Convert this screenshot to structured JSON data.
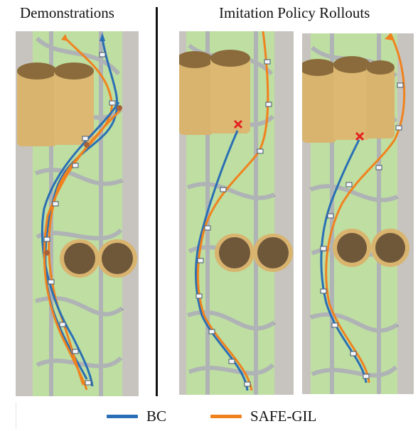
{
  "titles": {
    "left": "Demonstrations",
    "right": "Imitation Policy Rollouts"
  },
  "legend": {
    "bc": {
      "label": "BC",
      "color": "#2a6fb5"
    },
    "safe_gil": {
      "label": "SAFE-GIL",
      "color": "#f0821e"
    }
  },
  "colors": {
    "mat_green": "#9ccd71",
    "road": "#858a8e",
    "floor": "#c7c4bf",
    "tube": "#d9b46f",
    "tube_dark": "#8b6b3b",
    "collision": "#e32222"
  },
  "panels": [
    {
      "id": "demonstrations",
      "collision_markers": 0
    },
    {
      "id": "rollout-1",
      "collision_markers": 1
    },
    {
      "id": "rollout-2",
      "collision_markers": 1
    }
  ]
}
